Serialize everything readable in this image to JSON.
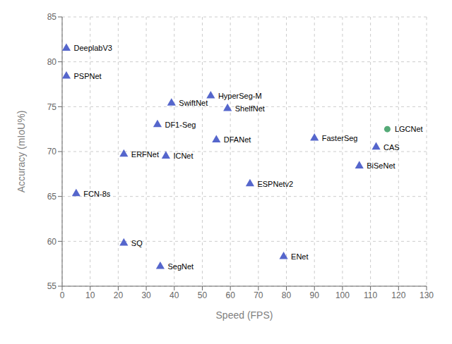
{
  "chart_data": {
    "type": "scatter",
    "xlabel": "Speed (FPS)",
    "ylabel": "Accuracy (mIoU%)",
    "xlim": [
      0,
      130
    ],
    "ylim": [
      55,
      85
    ],
    "xticks": [
      0,
      10,
      20,
      30,
      40,
      50,
      60,
      70,
      80,
      90,
      100,
      110,
      120,
      130
    ],
    "yticks": [
      55,
      60,
      65,
      70,
      75,
      80,
      85
    ],
    "grid": true,
    "series": [
      {
        "color": "#5566cc",
        "marker": "triangle",
        "x": [
          1.5,
          1.5,
          5.0,
          22.0,
          22.0,
          34.0,
          37.0,
          35.0,
          39.0,
          53.0,
          55.0,
          59.0,
          67.0,
          79.0,
          90.0,
          106.0,
          112.0
        ],
        "values": [
          81.5,
          78.4,
          65.3,
          69.7,
          59.8,
          73.0,
          69.5,
          57.2,
          75.4,
          76.2,
          71.3,
          74.8,
          66.4,
          58.3,
          71.5,
          68.4,
          70.5
        ],
        "labels": [
          "DeeplabV3",
          "PSPNet",
          "FCN-8s",
          "ERFNet",
          "SQ",
          "DF1-Seg",
          "ICNet",
          "SegNet",
          "SwiftNet",
          "HyperSeg-M",
          "DFANet",
          "ShelfNet",
          "ESPNetv2",
          "ENet",
          "FasterSeg",
          "BiSeNet",
          "CAS"
        ]
      },
      {
        "color": "#55aa77",
        "marker": "circle",
        "x": [
          116.0
        ],
        "values": [
          72.5
        ],
        "labels": [
          "LGCNet"
        ]
      }
    ]
  }
}
